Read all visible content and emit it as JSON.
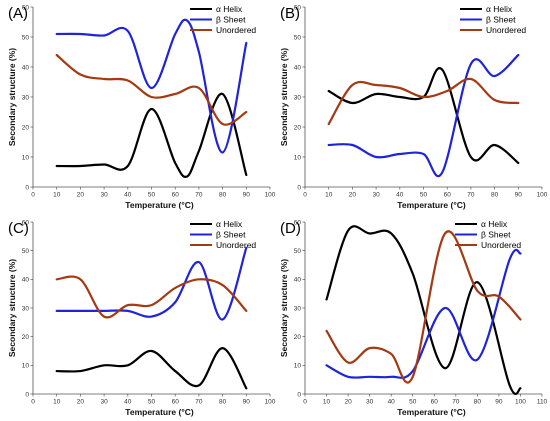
{
  "chart_data": [
    {
      "type": "line",
      "panel": "(A)",
      "xlabel": "Temperature (°C)",
      "ylabel": "Secondary structure (%)",
      "xlim": [
        0,
        100
      ],
      "ylim": [
        0,
        60
      ],
      "xticks": [
        0,
        10,
        20,
        30,
        40,
        50,
        60,
        70,
        80,
        90,
        100
      ],
      "yticks": [
        0,
        10,
        20,
        30,
        40,
        50,
        60
      ],
      "series": [
        {
          "name": "α Helix",
          "color": "#000000",
          "x": [
            10,
            20,
            30,
            40,
            50,
            60,
            65,
            70,
            80,
            90
          ],
          "y": [
            7,
            7,
            7.5,
            7,
            26,
            8,
            3.5,
            12,
            31,
            4
          ]
        },
        {
          "name": "β Sheet",
          "color": "#1f24d8",
          "x": [
            10,
            20,
            30,
            40,
            50,
            60,
            65,
            70,
            80,
            90
          ],
          "y": [
            51,
            51,
            50.5,
            52,
            33,
            51,
            55.5,
            45,
            11.5,
            48
          ]
        },
        {
          "name": "Unordered",
          "color": "#a33a12",
          "x": [
            10,
            20,
            30,
            40,
            50,
            60,
            70,
            80,
            90
          ],
          "y": [
            44,
            37.5,
            36,
            35.5,
            30,
            31,
            33,
            21,
            25
          ]
        }
      ]
    },
    {
      "type": "line",
      "panel": "(B)",
      "xlabel": "Temperature (°C)",
      "ylabel": "Secondary structure (%)",
      "xlim": [
        0,
        100
      ],
      "ylim": [
        0,
        60
      ],
      "xticks": [
        0,
        10,
        20,
        30,
        40,
        50,
        60,
        70,
        80,
        90,
        100
      ],
      "yticks": [
        0,
        10,
        20,
        30,
        40,
        50,
        60
      ],
      "series": [
        {
          "name": "α Helix",
          "color": "#000000",
          "x": [
            10,
            20,
            30,
            40,
            50,
            58,
            70,
            80,
            90
          ],
          "y": [
            32,
            28,
            31,
            30,
            30,
            39,
            10,
            14,
            8
          ]
        },
        {
          "name": "β Sheet",
          "color": "#1f24d8",
          "x": [
            10,
            20,
            30,
            40,
            50,
            58,
            70,
            80,
            90
          ],
          "y": [
            14,
            14,
            10,
            11,
            11,
            5,
            41,
            37,
            44
          ]
        },
        {
          "name": "Unordered",
          "color": "#a33a12",
          "x": [
            10,
            20,
            30,
            40,
            50,
            60,
            70,
            80,
            90
          ],
          "y": [
            21,
            34,
            34,
            33,
            30,
            32,
            36,
            29,
            28
          ]
        }
      ]
    },
    {
      "type": "line",
      "panel": "(C)",
      "xlabel": "Temperature (°C)",
      "ylabel": "Secondary structure (%)",
      "xlim": [
        0,
        100
      ],
      "ylim": [
        0,
        60
      ],
      "xticks": [
        0,
        10,
        20,
        30,
        40,
        50,
        60,
        70,
        80,
        90,
        100
      ],
      "yticks": [
        0,
        10,
        20,
        30,
        40,
        50,
        60
      ],
      "series": [
        {
          "name": "α Helix",
          "color": "#000000",
          "x": [
            10,
            20,
            30,
            40,
            50,
            60,
            70,
            80,
            90
          ],
          "y": [
            8,
            8,
            10,
            10,
            15,
            8,
            3,
            16,
            2
          ]
        },
        {
          "name": "β Sheet",
          "color": "#1f24d8",
          "x": [
            10,
            20,
            30,
            40,
            50,
            60,
            70,
            80,
            90
          ],
          "y": [
            29,
            29,
            29,
            29,
            27,
            32,
            46,
            26,
            51
          ]
        },
        {
          "name": "Unordered",
          "color": "#a33a12",
          "x": [
            10,
            20,
            30,
            40,
            50,
            60,
            70,
            80,
            90
          ],
          "y": [
            40,
            40,
            27,
            31,
            31,
            37,
            40,
            38,
            29
          ]
        }
      ]
    },
    {
      "type": "line",
      "panel": "(D)",
      "xlabel": "Temperature (°C)",
      "ylabel": "Secondary structure (%)",
      "xlim": [
        0,
        110
      ],
      "ylim": [
        0,
        60
      ],
      "xticks": [
        0,
        10,
        20,
        30,
        40,
        50,
        60,
        70,
        80,
        90,
        100,
        110
      ],
      "yticks": [
        0,
        10,
        20,
        30,
        40,
        50,
        60
      ],
      "series": [
        {
          "name": "α Helix",
          "color": "#000000",
          "x": [
            10,
            20,
            30,
            40,
            50,
            65,
            80,
            95,
            100
          ],
          "y": [
            33,
            57,
            56,
            56,
            42,
            9,
            39,
            3,
            2
          ]
        },
        {
          "name": "β Sheet",
          "color": "#1f24d8",
          "x": [
            10,
            20,
            30,
            40,
            50,
            65,
            80,
            95,
            100
          ],
          "y": [
            10,
            6,
            6,
            6,
            8,
            30,
            12,
            47,
            49
          ]
        },
        {
          "name": "Unordered",
          "color": "#a33a12",
          "x": [
            10,
            20,
            30,
            40,
            50,
            65,
            80,
            90,
            100
          ],
          "y": [
            22,
            11,
            16,
            14,
            6,
            56,
            36,
            34,
            26
          ]
        }
      ]
    }
  ]
}
